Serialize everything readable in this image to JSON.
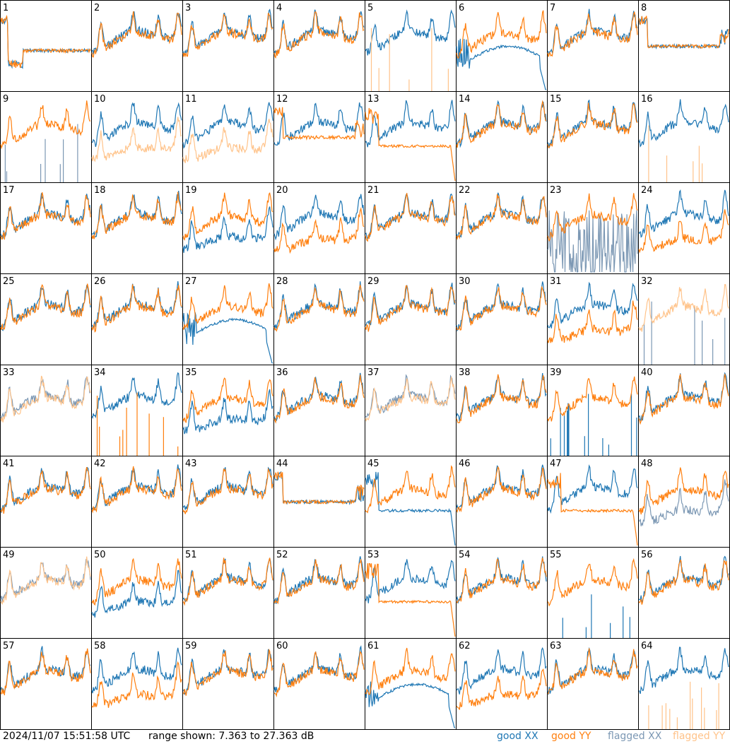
{
  "chart_data": {
    "type": "line",
    "panels": [
      {
        "id": "1",
        "xx": "good",
        "yy": "good",
        "xx_shape": "dip",
        "yy_shape": "dip"
      },
      {
        "id": "2",
        "xx": "good",
        "yy": "good",
        "xx_shape": "normal",
        "yy_shape": "normal"
      },
      {
        "id": "3",
        "xx": "good",
        "yy": "good",
        "xx_shape": "normal",
        "yy_shape": "normal"
      },
      {
        "id": "4",
        "xx": "good",
        "yy": "good",
        "xx_shape": "normal",
        "yy_shape": "normal"
      },
      {
        "id": "5",
        "xx": "good",
        "yy": "flagged",
        "xx_shape": "normal",
        "yy_shape": "spikes"
      },
      {
        "id": "6",
        "xx": "good",
        "yy": "good",
        "xx_shape": "bump",
        "yy_shape": "normal"
      },
      {
        "id": "7",
        "xx": "good",
        "yy": "good",
        "xx_shape": "normal",
        "yy_shape": "normal"
      },
      {
        "id": "8",
        "xx": "good",
        "yy": "good",
        "xx_shape": "flat",
        "yy_shape": "flat"
      },
      {
        "id": "9",
        "xx": "flagged",
        "yy": "good",
        "xx_shape": "spikes",
        "yy_shape": "normal"
      },
      {
        "id": "10",
        "xx": "good",
        "yy": "flagged",
        "xx_shape": "normal",
        "yy_shape": "low"
      },
      {
        "id": "11",
        "xx": "good",
        "yy": "flagged",
        "xx_shape": "normal",
        "yy_shape": "low"
      },
      {
        "id": "12",
        "xx": "good",
        "yy": "good",
        "xx_shape": "normal",
        "yy_shape": "flat"
      },
      {
        "id": "13",
        "xx": "good",
        "yy": "good",
        "xx_shape": "normal",
        "yy_shape": "flatdrop"
      },
      {
        "id": "14",
        "xx": "good",
        "yy": "good",
        "xx_shape": "normal",
        "yy_shape": "normal"
      },
      {
        "id": "15",
        "xx": "good",
        "yy": "good",
        "xx_shape": "normal",
        "yy_shape": "normal"
      },
      {
        "id": "16",
        "xx": "good",
        "yy": "flagged",
        "xx_shape": "normal",
        "yy_shape": "spikes"
      },
      {
        "id": "17",
        "xx": "good",
        "yy": "good",
        "xx_shape": "normal",
        "yy_shape": "normal"
      },
      {
        "id": "18",
        "xx": "good",
        "yy": "good",
        "xx_shape": "normal",
        "yy_shape": "normal"
      },
      {
        "id": "19",
        "xx": "good",
        "yy": "good",
        "xx_shape": "low",
        "yy_shape": "normal"
      },
      {
        "id": "20",
        "xx": "good",
        "yy": "good",
        "xx_shape": "normal",
        "yy_shape": "low"
      },
      {
        "id": "21",
        "xx": "good",
        "yy": "good",
        "xx_shape": "normal",
        "yy_shape": "normal"
      },
      {
        "id": "22",
        "xx": "good",
        "yy": "good",
        "xx_shape": "normal",
        "yy_shape": "normal"
      },
      {
        "id": "23",
        "xx": "flagged",
        "yy": "good",
        "xx_shape": "noise",
        "yy_shape": "normal"
      },
      {
        "id": "24",
        "xx": "good",
        "yy": "good",
        "xx_shape": "normal",
        "yy_shape": "low"
      },
      {
        "id": "25",
        "xx": "good",
        "yy": "good",
        "xx_shape": "normal",
        "yy_shape": "normal"
      },
      {
        "id": "26",
        "xx": "good",
        "yy": "good",
        "xx_shape": "normal",
        "yy_shape": "normal"
      },
      {
        "id": "27",
        "xx": "good",
        "yy": "good",
        "xx_shape": "bump",
        "yy_shape": "normal"
      },
      {
        "id": "28",
        "xx": "good",
        "yy": "good",
        "xx_shape": "normal",
        "yy_shape": "normal"
      },
      {
        "id": "29",
        "xx": "good",
        "yy": "good",
        "xx_shape": "normal",
        "yy_shape": "normal"
      },
      {
        "id": "30",
        "xx": "good",
        "yy": "good",
        "xx_shape": "normal",
        "yy_shape": "normal"
      },
      {
        "id": "31",
        "xx": "good",
        "yy": "good",
        "xx_shape": "normal",
        "yy_shape": "low"
      },
      {
        "id": "32",
        "xx": "flagged",
        "yy": "flagged",
        "xx_shape": "spikes",
        "yy_shape": "normal"
      },
      {
        "id": "33",
        "xx": "flagged",
        "yy": "flagged",
        "xx_shape": "normal",
        "yy_shape": "normal"
      },
      {
        "id": "34",
        "xx": "good",
        "yy": "good",
        "xx_shape": "normal",
        "yy_shape": "spikes"
      },
      {
        "id": "35",
        "xx": "good",
        "yy": "good",
        "xx_shape": "low",
        "yy_shape": "normal"
      },
      {
        "id": "36",
        "xx": "good",
        "yy": "good",
        "xx_shape": "normal",
        "yy_shape": "normal"
      },
      {
        "id": "37",
        "xx": "flagged",
        "yy": "flagged",
        "xx_shape": "normal",
        "yy_shape": "normal"
      },
      {
        "id": "38",
        "xx": "good",
        "yy": "good",
        "xx_shape": "normal",
        "yy_shape": "normal"
      },
      {
        "id": "39",
        "xx": "good",
        "yy": "good",
        "xx_shape": "spikes",
        "yy_shape": "normal"
      },
      {
        "id": "40",
        "xx": "good",
        "yy": "good",
        "xx_shape": "normal",
        "yy_shape": "normal"
      },
      {
        "id": "41",
        "xx": "good",
        "yy": "good",
        "xx_shape": "normal",
        "yy_shape": "normal"
      },
      {
        "id": "42",
        "xx": "good",
        "yy": "good",
        "xx_shape": "normal",
        "yy_shape": "normal"
      },
      {
        "id": "43",
        "xx": "good",
        "yy": "good",
        "xx_shape": "normal",
        "yy_shape": "normal"
      },
      {
        "id": "44",
        "xx": "good",
        "yy": "good",
        "xx_shape": "flat",
        "yy_shape": "flat"
      },
      {
        "id": "45",
        "xx": "good",
        "yy": "good",
        "xx_shape": "flatdrop",
        "yy_shape": "normal"
      },
      {
        "id": "46",
        "xx": "good",
        "yy": "good",
        "xx_shape": "normal",
        "yy_shape": "normal"
      },
      {
        "id": "47",
        "xx": "good",
        "yy": "good",
        "xx_shape": "normal",
        "yy_shape": "flatdrop"
      },
      {
        "id": "48",
        "xx": "flagged",
        "yy": "good",
        "xx_shape": "low",
        "yy_shape": "normal"
      },
      {
        "id": "49",
        "xx": "flagged",
        "yy": "flagged",
        "xx_shape": "normal",
        "yy_shape": "normal"
      },
      {
        "id": "50",
        "xx": "good",
        "yy": "good",
        "xx_shape": "low",
        "yy_shape": "normal"
      },
      {
        "id": "51",
        "xx": "good",
        "yy": "good",
        "xx_shape": "normal",
        "yy_shape": "normal"
      },
      {
        "id": "52",
        "xx": "good",
        "yy": "good",
        "xx_shape": "normal",
        "yy_shape": "normal"
      },
      {
        "id": "53",
        "xx": "good",
        "yy": "good",
        "xx_shape": "normal",
        "yy_shape": "flatdrop"
      },
      {
        "id": "54",
        "xx": "good",
        "yy": "good",
        "xx_shape": "normal",
        "yy_shape": "normal"
      },
      {
        "id": "55",
        "xx": "good",
        "yy": "good",
        "xx_shape": "spikes",
        "yy_shape": "normal"
      },
      {
        "id": "56",
        "xx": "good",
        "yy": "good",
        "xx_shape": "normal",
        "yy_shape": "normal"
      },
      {
        "id": "57",
        "xx": "good",
        "yy": "good",
        "xx_shape": "normal",
        "yy_shape": "normal"
      },
      {
        "id": "58",
        "xx": "good",
        "yy": "good",
        "xx_shape": "normal",
        "yy_shape": "low"
      },
      {
        "id": "59",
        "xx": "good",
        "yy": "good",
        "xx_shape": "normal",
        "yy_shape": "normal"
      },
      {
        "id": "60",
        "xx": "good",
        "yy": "good",
        "xx_shape": "normal",
        "yy_shape": "normal"
      },
      {
        "id": "61",
        "xx": "good",
        "yy": "good",
        "xx_shape": "bump",
        "yy_shape": "normal"
      },
      {
        "id": "62",
        "xx": "good",
        "yy": "good",
        "xx_shape": "normal",
        "yy_shape": "low"
      },
      {
        "id": "63",
        "xx": "good",
        "yy": "good",
        "xx_shape": "normal",
        "yy_shape": "normal"
      },
      {
        "id": "64",
        "xx": "good",
        "yy": "flagged",
        "xx_shape": "normal",
        "yy_shape": "spikes"
      }
    ],
    "ylim": [
      7.363,
      27.363
    ],
    "y_unit": "dB",
    "legend": [
      {
        "label": "good XX",
        "color": "#1f77b4"
      },
      {
        "label": "good YY",
        "color": "#ff7f0e"
      },
      {
        "label": "flagged XX",
        "color": "#7c98b4"
      },
      {
        "label": "flagged YY",
        "color": "#ffc38a"
      }
    ],
    "legend_position": "bottom-right",
    "grid": false
  },
  "footer": {
    "timestamp": "2024/11/07 15:51:58 UTC",
    "range_text": "range shown: 7.363 to 27.363 dB"
  }
}
